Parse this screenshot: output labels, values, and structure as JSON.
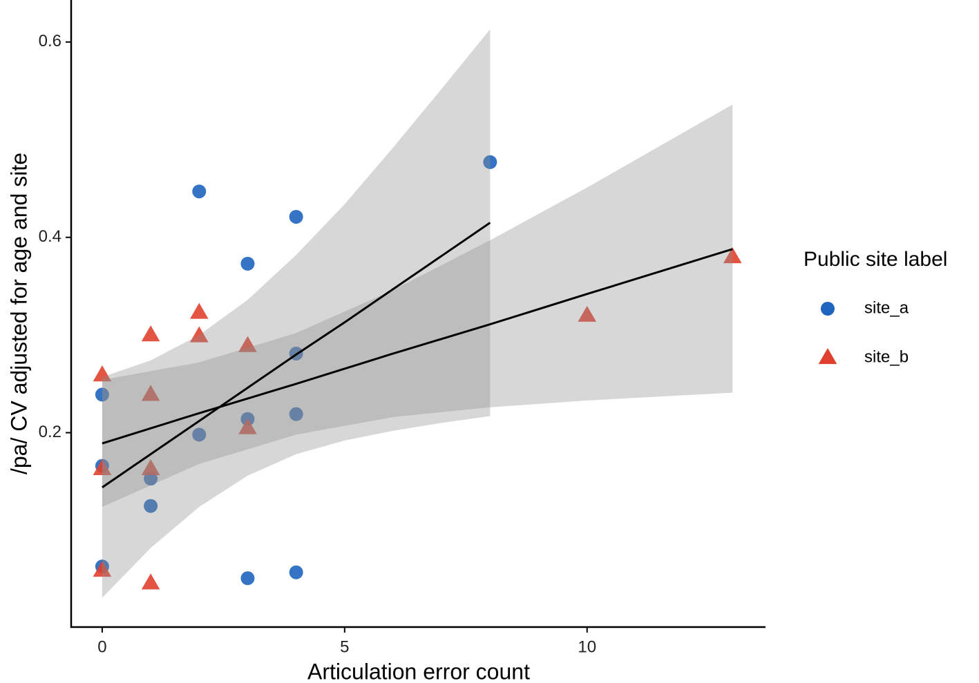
{
  "chart_data": {
    "type": "scatter",
    "x_label": "Articulation error count",
    "y_label": "/pa/ CV adjusted for age and site",
    "legend_title": "Public site label",
    "legend_position": "right",
    "xlim": [
      -0.64,
      13.68
    ],
    "xticks": [
      0,
      5,
      10
    ],
    "ylim": [
      0.001,
      0.643
    ],
    "yticks": [
      {
        "value": 0.2,
        "label": "0.2"
      },
      {
        "value": 0.4,
        "label": "0.4"
      },
      {
        "value": 0.6,
        "label": "0.6"
      }
    ],
    "band_color": "#8c8c8c",
    "line_color": "#000000",
    "series": [
      {
        "name": "site_a",
        "color": "#1f64bf",
        "marker": "circle",
        "x": [
          0,
          0,
          0,
          1,
          1,
          2,
          2,
          3,
          3,
          3,
          4,
          4,
          4,
          4,
          8
        ],
        "values": [
          0.239,
          0.166,
          0.063,
          0.153,
          0.125,
          0.447,
          0.198,
          0.373,
          0.214,
          0.051,
          0.421,
          0.281,
          0.219,
          0.057,
          0.477
        ],
        "fit": {
          "x": [
            0,
            1,
            2,
            3,
            4,
            5,
            6,
            7,
            8
          ],
          "values": [
            0.144,
            0.178,
            0.212,
            0.246,
            0.28,
            0.313,
            0.347,
            0.381,
            0.415
          ],
          "lower": [
            0.031,
            0.082,
            0.124,
            0.156,
            0.178,
            0.192,
            0.202,
            0.21,
            0.217
          ],
          "upper": [
            0.257,
            0.274,
            0.3,
            0.336,
            0.382,
            0.434,
            0.492,
            0.552,
            0.613
          ]
        }
      },
      {
        "name": "site_b",
        "color": "#e0412f",
        "marker": "triangle",
        "x": [
          0,
          0,
          0,
          1,
          1,
          1,
          1,
          2,
          2,
          3,
          3,
          10,
          13
        ],
        "values": [
          0.259,
          0.163,
          0.059,
          0.3,
          0.239,
          0.163,
          0.046,
          0.323,
          0.299,
          0.289,
          0.205,
          0.32,
          0.38
        ],
        "fit": {
          "x": [
            0,
            2,
            4,
            6,
            8,
            10,
            13
          ],
          "values": [
            0.189,
            0.22,
            0.25,
            0.281,
            0.311,
            0.342,
            0.388
          ],
          "lower": [
            0.124,
            0.168,
            0.198,
            0.216,
            0.226,
            0.233,
            0.241
          ],
          "upper": [
            0.254,
            0.272,
            0.302,
            0.346,
            0.397,
            0.451,
            0.536
          ]
        }
      }
    ]
  }
}
